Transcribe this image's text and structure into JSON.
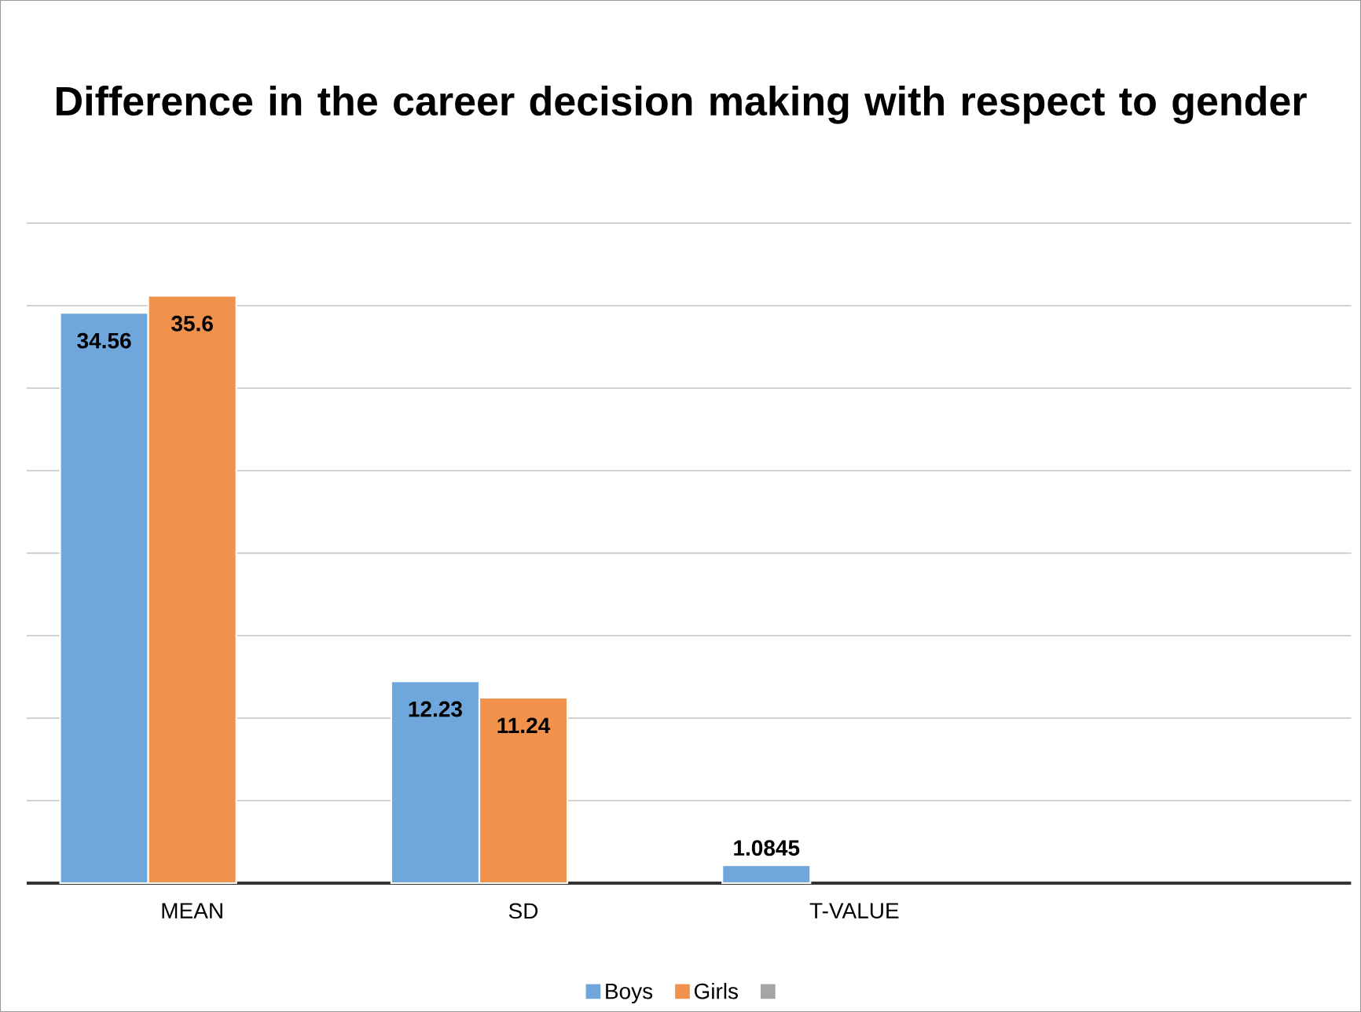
{
  "chart_data": {
    "type": "bar",
    "title": "Difference in the career decision making with respect to gender",
    "categories": [
      "MEAN",
      "SD",
      "T-VALUE",
      null
    ],
    "series": [
      {
        "name": "Boys",
        "color": "#6fa6dc",
        "values": [
          34.56,
          12.23,
          1.0845,
          null
        ]
      },
      {
        "name": "Girls",
        "color": "#f0914c",
        "values": [
          35.6,
          11.24,
          null,
          null
        ]
      },
      {
        "color": "#a5a5a5",
        "values": [
          null,
          null,
          null,
          null
        ]
      }
    ],
    "ylim": [
      0,
      40
    ],
    "yticks": [
      {
        "value": 0,
        "label": null
      },
      {
        "value": 5,
        "label": null
      },
      {
        "value": 10,
        "label": null
      },
      {
        "value": 15,
        "label": null
      },
      {
        "value": 20,
        "label": null
      },
      {
        "value": 25,
        "label": null
      },
      {
        "value": 30,
        "label": null
      },
      {
        "value": 35,
        "label": null
      },
      {
        "value": 40,
        "label": null
      }
    ],
    "tick_labels": "x",
    "grid": "y",
    "data_labels": true,
    "legend": "bottom"
  }
}
